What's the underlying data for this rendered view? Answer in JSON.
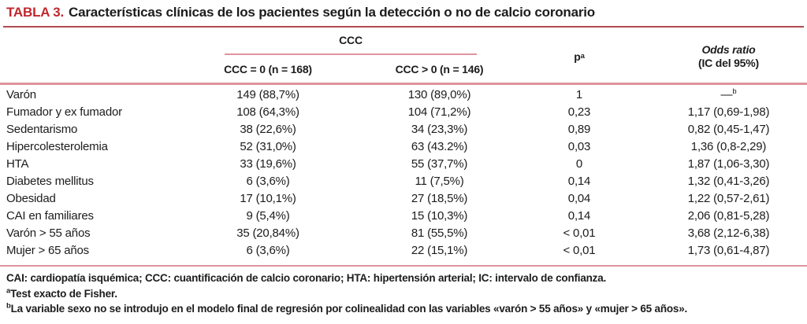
{
  "title": {
    "label": "TABLA 3.",
    "text": "Características clínicas de los pacientes según la detección o no de calcio coronario"
  },
  "table": {
    "group_header": "CCC",
    "columns": [
      "CCC = 0 (n = 168)",
      "CCC > 0 (n = 146)"
    ],
    "p_header": {
      "base": "p",
      "sup": "a"
    },
    "or_header": {
      "line1": "Odds ratio",
      "line2": "(IC del 95%)"
    },
    "rows": [
      {
        "label": "Varón",
        "ccc0": "149 (88,7%)",
        "ccc1": "130 (89,0%)",
        "p": "1",
        "or": "—",
        "or_sup": "b"
      },
      {
        "label": "Fumador y ex fumador",
        "ccc0": "108 (64,3%)",
        "ccc1": "104 (71,2%)",
        "p": "0,23",
        "or": "1,17 (0,69-1,98)"
      },
      {
        "label": "Sedentarismo",
        "ccc0": "38 (22,6%)",
        "ccc1": "34 (23,3%)",
        "p": "0,89",
        "or": "0,82 (0,45-1,47)"
      },
      {
        "label": "Hipercolesterolemia",
        "ccc0": "52 (31,0%)",
        "ccc1": "63 (43.2%)",
        "p": "0,03",
        "or": "1,36 (0,8-2,29)"
      },
      {
        "label": "HTA",
        "ccc0": "33 (19,6%)",
        "ccc1": "55 (37,7%)",
        "p": "0",
        "or": "1,87 (1,06-3,30)"
      },
      {
        "label": "Diabetes mellitus",
        "ccc0": "6 (3,6%)",
        "ccc1": "11 (7,5%)",
        "p": "0,14",
        "or": "1,32 (0,41-3,26)"
      },
      {
        "label": "Obesidad",
        "ccc0": "17 (10,1%)",
        "ccc1": "27 (18,5%)",
        "p": "0,04",
        "or": "1,22 (0,57-2,61)"
      },
      {
        "label": "CAI en familiares",
        "ccc0": "9 (5,4%)",
        "ccc1": "15 (10,3%)",
        "p": "0,14",
        "or": "2,06 (0,81-5,28)"
      },
      {
        "label": "Varón > 55 años",
        "ccc0": "35 (20,84%)",
        "ccc1": "81 (55,5%)",
        "p": "< 0,01",
        "or": "3,68 (2,12-6,38)"
      },
      {
        "label": "Mujer > 65 años",
        "ccc0": "6 (3,6%)",
        "ccc1": "22 (15,1%)",
        "p": "< 0,01",
        "or": "1,73 (0,61-4,87)"
      }
    ]
  },
  "footnotes": {
    "abbreviations": "CAI: cardiopatía isquémica; CCC: cuantificación de calcio coronario; HTA: hipertensión arterial; IC: intervalo de confianza.",
    "a_sup": "a",
    "a_text": "Test exacto de Fisher.",
    "b_sup": "b",
    "b_text": "La variable sexo no se introdujo en el modelo final de regresión por colinealidad con las variables «varón > 55 años» y «mujer > 65 años»."
  },
  "colors": {
    "accent_red": "#c1272d",
    "rule_dark": "#b04a50",
    "rule_light": "#e0939b",
    "text": "#1c1c1c"
  }
}
